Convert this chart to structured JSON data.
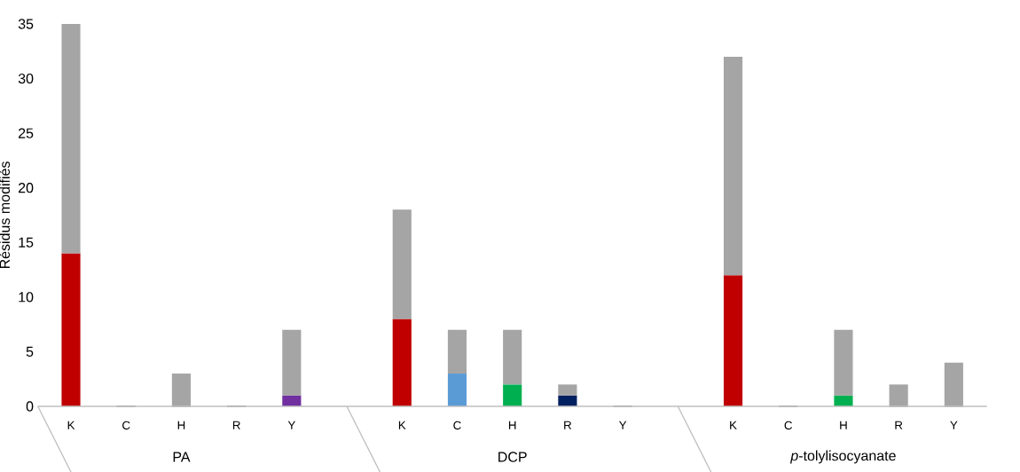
{
  "chart_data": {
    "type": "bar",
    "stacked": true,
    "ylabel": "Résidus modifiés",
    "categories": [
      "K",
      "C",
      "H",
      "R",
      "Y",
      null,
      "K",
      "C",
      "H",
      "R",
      "Y",
      null,
      "K",
      "C",
      "H",
      "R",
      "Y"
    ],
    "series": [
      {
        "colors": [
          "#c00000",
          "#a5a5a5",
          "#a5a5a5",
          "#a5a5a5",
          "#7030a0",
          "#a5a5a5",
          "#c00000",
          "#5b9bd5",
          "#00b050",
          "#002060",
          "#a5a5a5",
          "#a5a5a5",
          "#c00000",
          "#a5a5a5",
          "#00b050",
          "#a5a5a5",
          "#a5a5a5"
        ],
        "values": [
          14,
          0,
          0,
          0,
          1,
          null,
          8,
          3,
          2,
          1,
          0,
          null,
          12,
          0,
          1,
          0,
          0
        ]
      },
      {
        "color": "#a5a5a5",
        "values": [
          21,
          0,
          3,
          0,
          6,
          null,
          10,
          4,
          5,
          1,
          0,
          null,
          20,
          0,
          6,
          2,
          4
        ]
      }
    ],
    "ylim": [
      0,
      35
    ],
    "yticks": [
      0,
      5,
      10,
      15,
      20,
      25,
      30,
      35
    ],
    "annotations": [
      "PA",
      "DCP",
      "*p*-tolylisocyanate"
    ]
  }
}
